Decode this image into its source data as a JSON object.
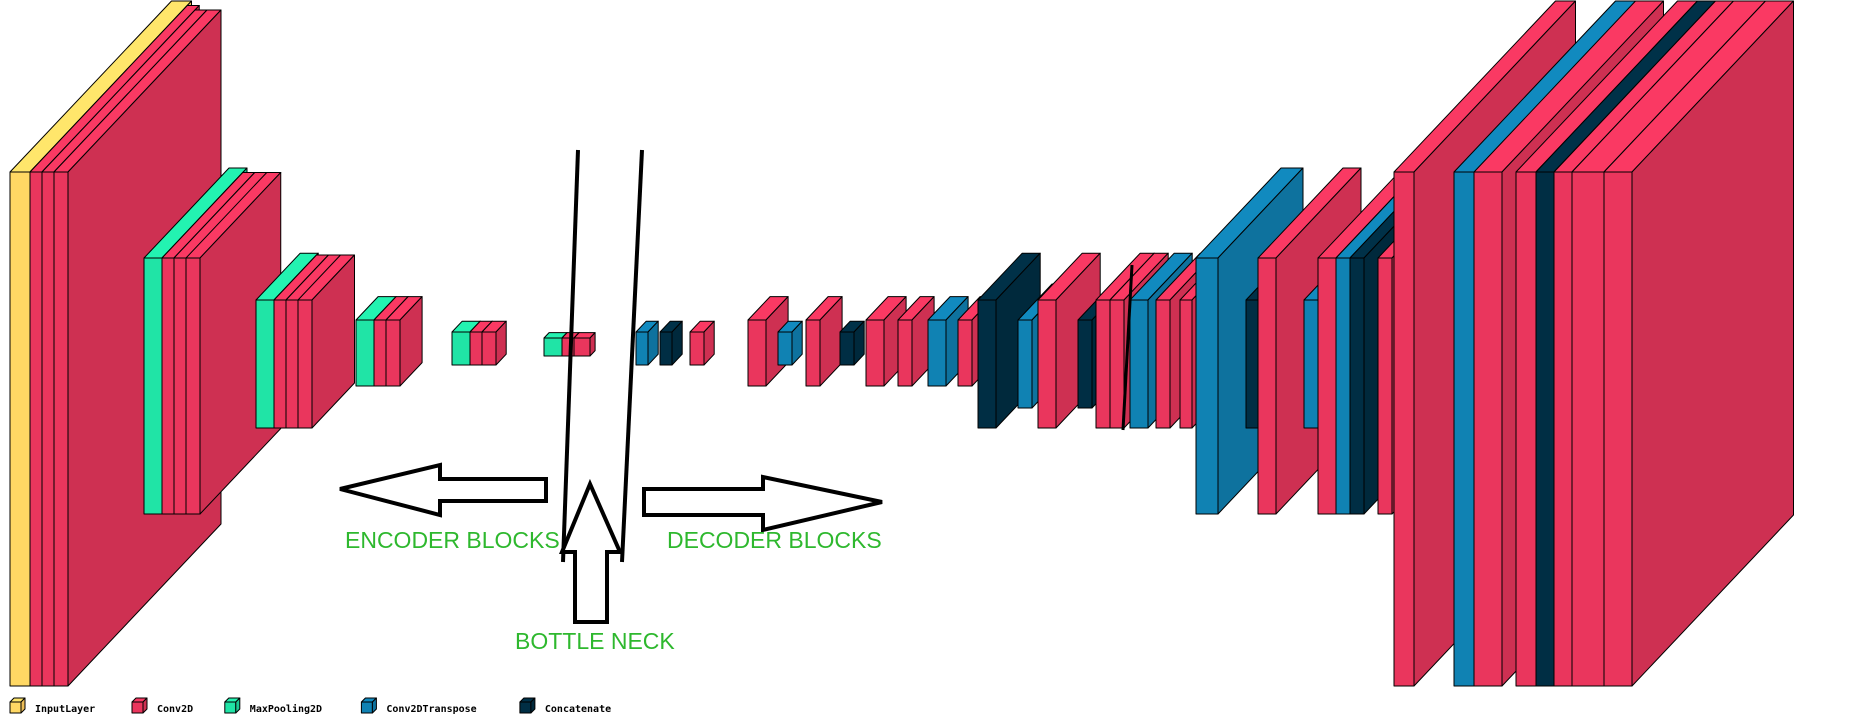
{
  "colors": {
    "InputLayer": "#f9c85d",
    "Conv2D": "#d93256",
    "MaxPooling2D": "#1ed39a",
    "Conv2DTranspose": "#0f78a6",
    "Concatenate": "#002b3f",
    "annotation": "#2eb82e"
  },
  "labels": {
    "encoder": "ENCODER BLOCKS",
    "decoder": "DECODER BLOCKS",
    "bottleneck": "BOTTLE NECK"
  },
  "legend": [
    {
      "type": "InputLayer",
      "label": "InputLayer"
    },
    {
      "type": "Conv2D",
      "label": "Conv2D"
    },
    {
      "type": "MaxPooling2D",
      "label": "MaxPooling2D"
    },
    {
      "type": "Conv2DTranspose",
      "label": "Conv2DTranspose"
    },
    {
      "type": "Concatenate",
      "label": "Concatenate"
    }
  ],
  "layers": [
    {
      "type": "InputLayer"
    },
    {
      "type": "Conv2D"
    },
    {
      "type": "Conv2D"
    },
    {
      "type": "Conv2D"
    },
    {
      "type": "MaxPooling2D"
    },
    {
      "type": "Conv2D"
    },
    {
      "type": "Conv2D"
    },
    {
      "type": "Conv2D"
    },
    {
      "type": "MaxPooling2D"
    },
    {
      "type": "Conv2D"
    },
    {
      "type": "Conv2D"
    },
    {
      "type": "Conv2D"
    },
    {
      "type": "MaxPooling2D"
    },
    {
      "type": "Conv2D"
    },
    {
      "type": "Conv2D"
    },
    {
      "type": "MaxPooling2D"
    },
    {
      "type": "Conv2D"
    },
    {
      "type": "Conv2D"
    },
    {
      "type": "MaxPooling2D"
    },
    {
      "type": "Conv2D"
    },
    {
      "type": "Conv2D"
    },
    {
      "type": "Conv2DTranspose"
    },
    {
      "type": "Concatenate"
    },
    {
      "type": "Conv2D"
    },
    {
      "type": "Conv2D"
    },
    {
      "type": "Conv2DTranspose"
    },
    {
      "type": "Conv2D"
    },
    {
      "type": "Concatenate"
    },
    {
      "type": "Conv2D"
    },
    {
      "type": "Conv2D"
    },
    {
      "type": "Conv2DTranspose"
    },
    {
      "type": "Conv2D"
    },
    {
      "type": "Concatenate"
    },
    {
      "type": "Conv2DTranspose"
    },
    {
      "type": "Conv2D"
    },
    {
      "type": "Concatenate"
    },
    {
      "type": "Conv2D"
    },
    {
      "type": "Conv2D"
    },
    {
      "type": "Conv2DTranspose"
    },
    {
      "type": "Conv2D"
    },
    {
      "type": "Conv2D"
    },
    {
      "type": "Conv2DTranspose"
    },
    {
      "type": "Concatenate"
    },
    {
      "type": "Conv2D"
    },
    {
      "type": "Conv2DTranspose"
    },
    {
      "type": "Conv2D"
    },
    {
      "type": "Conv2DTranspose"
    },
    {
      "type": "Concatenate"
    },
    {
      "type": "Conv2D"
    },
    {
      "type": "Conv2D"
    },
    {
      "type": "Conv2DTranspose"
    },
    {
      "type": "Conv2D"
    },
    {
      "type": "Conv2D"
    },
    {
      "type": "Concatenate"
    },
    {
      "type": "Conv2D"
    },
    {
      "type": "Conv2D"
    },
    {
      "type": "Conv2D"
    }
  ]
}
